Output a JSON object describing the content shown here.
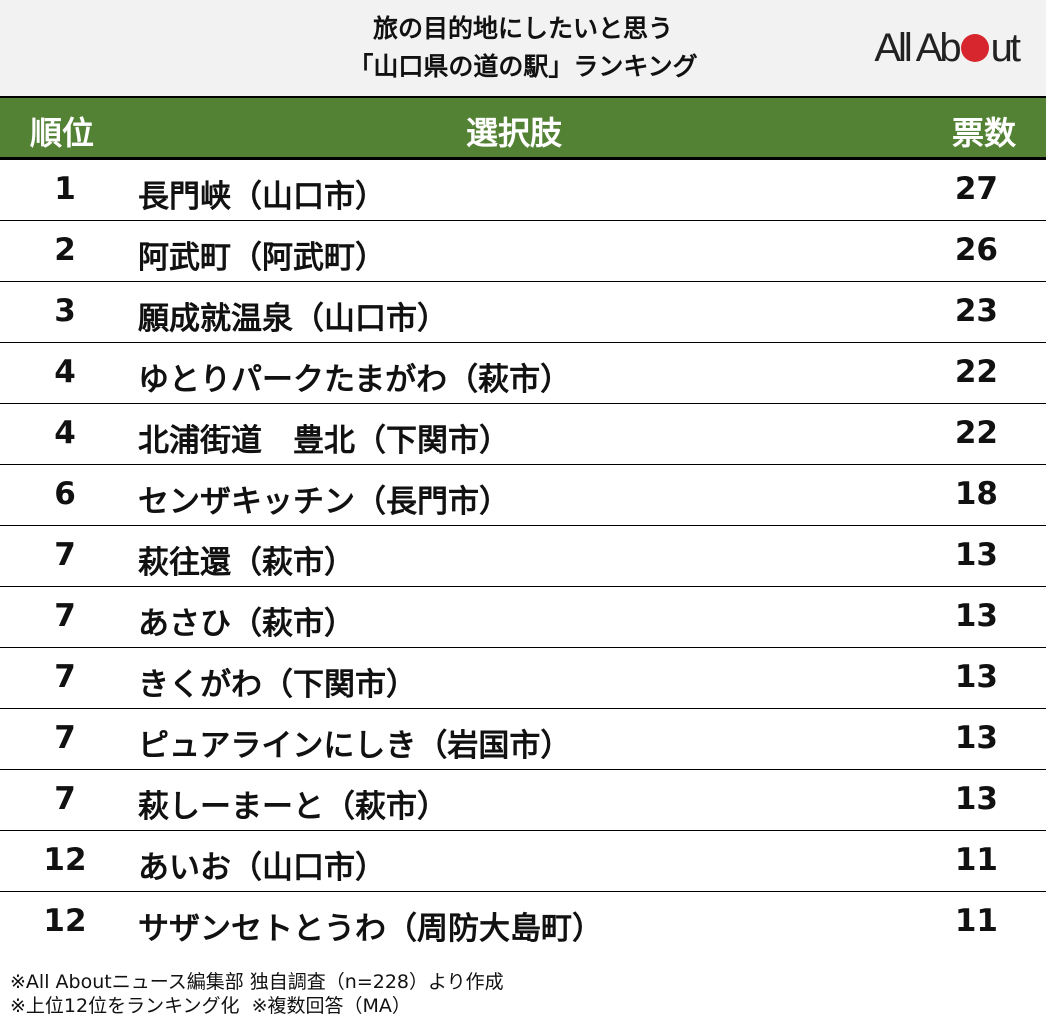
{
  "title": {
    "line1": "旅の目的地にしたいと思う",
    "line2": "「山口県の道の駅」ランキング"
  },
  "logo": {
    "text_before": "All Ab",
    "text_after": "ut",
    "brand_color": "#d7262e"
  },
  "header": {
    "rank": "順位",
    "choice": "選択肢",
    "votes": "票数",
    "bg_color": "#548235"
  },
  "rows": [
    {
      "rank": "1",
      "name": "長門峡（山口市）",
      "votes": "27"
    },
    {
      "rank": "2",
      "name": "阿武町（阿武町）",
      "votes": "26"
    },
    {
      "rank": "3",
      "name": "願成就温泉（山口市）",
      "votes": "23"
    },
    {
      "rank": "4",
      "name": "ゆとりパークたまがわ（萩市）",
      "votes": "22"
    },
    {
      "rank": "4",
      "name": "北浦街道　豊北（下関市）",
      "votes": "22"
    },
    {
      "rank": "6",
      "name": "センザキッチン（長門市）",
      "votes": "18"
    },
    {
      "rank": "7",
      "name": "萩往還（萩市）",
      "votes": "13"
    },
    {
      "rank": "7",
      "name": "あさひ（萩市）",
      "votes": "13"
    },
    {
      "rank": "7",
      "name": "きくがわ（下関市）",
      "votes": "13"
    },
    {
      "rank": "7",
      "name": "ピュアラインにしき（岩国市）",
      "votes": "13"
    },
    {
      "rank": "7",
      "name": "萩しーまーと（萩市）",
      "votes": "13"
    },
    {
      "rank": "12",
      "name": "あいお（山口市）",
      "votes": "11"
    },
    {
      "rank": "12",
      "name": "サザンセトとうわ（周防大島町）",
      "votes": "11"
    }
  ],
  "footer": {
    "line1": "※All Aboutニュース編集部 独自調査（n=228）より作成",
    "line2": "※上位12位をランキング化  ※複数回答（MA）"
  }
}
